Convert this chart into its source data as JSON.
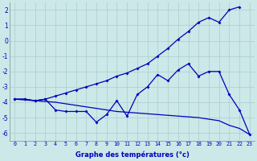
{
  "xlabel": "Graphe des températures (°c)",
  "background_color": "#cce8e8",
  "grid_color": "#aacece",
  "line_color": "#0000bb",
  "x_labels": [
    "0",
    "1",
    "2",
    "3",
    "4",
    "5",
    "6",
    "7",
    "8",
    "9",
    "10",
    "11",
    "12",
    "13",
    "14",
    "15",
    "16",
    "17",
    "18",
    "19",
    "20",
    "21",
    "22",
    "23"
  ],
  "line1_y": [
    -3.8,
    -3.8,
    -3.9,
    -3.8,
    -3.6,
    -3.4,
    -3.2,
    -3.0,
    -2.8,
    -2.6,
    -2.3,
    -2.1,
    -1.8,
    -1.5,
    -1.0,
    -0.5,
    0.1,
    0.6,
    1.2,
    1.5,
    1.2,
    2.0,
    2.2,
    null
  ],
  "line2_y": [
    -3.8,
    -3.8,
    -3.9,
    -3.8,
    -4.5,
    -4.6,
    -4.6,
    -4.6,
    -5.3,
    -4.8,
    -3.9,
    -4.9,
    -3.5,
    -3.0,
    -2.2,
    -2.6,
    -1.9,
    -1.5,
    -2.3,
    -2.0,
    -2.0,
    -3.5,
    -4.5,
    -6.1
  ],
  "line3_y": [
    -3.8,
    -3.85,
    -3.9,
    -3.95,
    -4.0,
    -4.1,
    -4.2,
    -4.3,
    -4.4,
    -4.5,
    -4.6,
    -4.65,
    -4.7,
    -4.75,
    -4.8,
    -4.85,
    -4.9,
    -4.95,
    -5.0,
    -5.1,
    -5.2,
    -5.5,
    -5.7,
    -6.1
  ],
  "ylim": [
    -6.5,
    2.5
  ],
  "yticks": [
    -6,
    -5,
    -4,
    -3,
    -2,
    -1,
    0,
    1,
    2
  ]
}
